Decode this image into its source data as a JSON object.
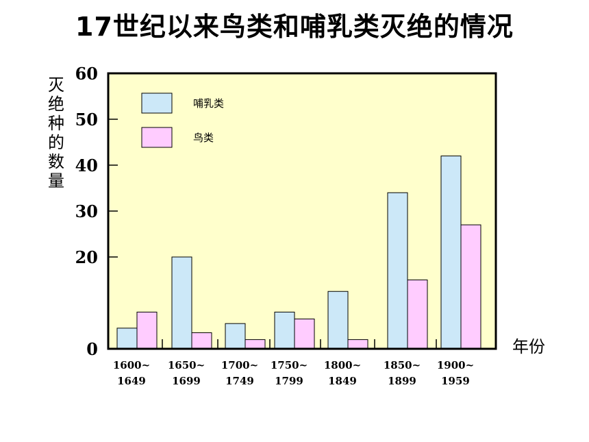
{
  "title": "17世纪以来鸟类和哺乳类灭绝的情况",
  "colors": {
    "plot_bg": "#ffffcc",
    "mammal": "#cce8f8",
    "bird": "#ffccff",
    "axis": "#000000"
  },
  "chart_data": {
    "type": "bar",
    "title": "17世纪以来鸟类和哺乳类灭绝的情况",
    "ylabel": "灭绝种的数量",
    "xlabel": "年份",
    "ylim": [
      0,
      60
    ],
    "yticks": [
      0,
      20,
      30,
      40,
      50,
      60
    ],
    "categories": [
      {
        "top": "1600~",
        "bottom": "1649"
      },
      {
        "top": "1650~",
        "bottom": "1699"
      },
      {
        "top": "1700~",
        "bottom": "1749"
      },
      {
        "top": "1750~",
        "bottom": "1799"
      },
      {
        "top": "1800~",
        "bottom": "1849"
      },
      {
        "top": "1850~",
        "bottom": "1899"
      },
      {
        "top": "1900~",
        "bottom": "1959"
      }
    ],
    "series": [
      {
        "name": "哺乳类",
        "values": [
          4.5,
          20,
          5.5,
          8,
          12.5,
          34,
          42
        ]
      },
      {
        "name": "鸟类",
        "values": [
          8,
          3.5,
          2,
          6.5,
          2,
          15,
          27
        ]
      }
    ],
    "legend_position": "top-left",
    "grid": false
  }
}
